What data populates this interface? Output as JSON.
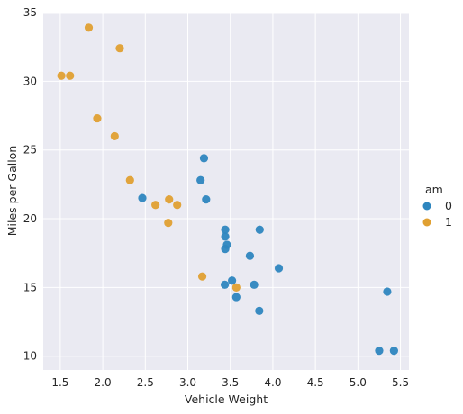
{
  "chart_data": {
    "type": "scatter",
    "title": "",
    "xlabel": "Vehicle Weight",
    "ylabel": "Miles per Gallon",
    "xlim": [
      1.3,
      5.6
    ],
    "ylim": [
      9.0,
      35.0
    ],
    "xticks": [
      "1.5",
      "2.0",
      "2.5",
      "3.0",
      "3.5",
      "4.0",
      "4.5",
      "5.0",
      "5.5"
    ],
    "yticks": [
      "10",
      "15",
      "20",
      "25",
      "30",
      "35"
    ],
    "grid": true,
    "legend": {
      "title": "am",
      "placement": "right"
    },
    "series": [
      {
        "name": "0",
        "color": "#2e86bf",
        "points": [
          [
            3.215,
            21.4
          ],
          [
            3.44,
            18.7
          ],
          [
            3.46,
            18.1
          ],
          [
            3.57,
            14.3
          ],
          [
            3.19,
            24.4
          ],
          [
            3.15,
            22.8
          ],
          [
            3.44,
            19.2
          ],
          [
            3.44,
            17.8
          ],
          [
            4.07,
            16.4
          ],
          [
            3.73,
            17.3
          ],
          [
            3.78,
            15.2
          ],
          [
            5.25,
            10.4
          ],
          [
            5.424,
            10.4
          ],
          [
            5.345,
            14.7
          ],
          [
            2.465,
            21.5
          ],
          [
            3.52,
            15.5
          ],
          [
            3.435,
            15.2
          ],
          [
            3.84,
            13.3
          ],
          [
            3.845,
            19.2
          ]
        ]
      },
      {
        "name": "1",
        "color": "#e0a032",
        "points": [
          [
            2.62,
            21.0
          ],
          [
            2.875,
            21.0
          ],
          [
            2.32,
            22.8
          ],
          [
            2.2,
            32.4
          ],
          [
            1.615,
            30.4
          ],
          [
            1.835,
            33.9
          ],
          [
            1.935,
            27.3
          ],
          [
            2.14,
            26.0
          ],
          [
            1.513,
            30.4
          ],
          [
            3.17,
            15.8
          ],
          [
            2.77,
            19.7
          ],
          [
            3.57,
            15.0
          ],
          [
            2.78,
            21.4
          ]
        ]
      }
    ]
  }
}
